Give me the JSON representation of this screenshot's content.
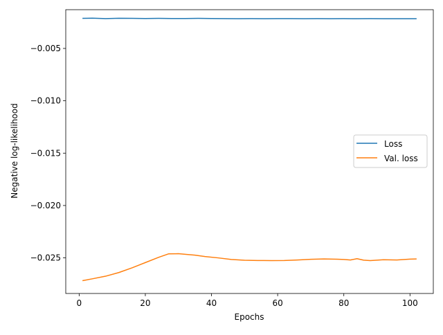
{
  "chart_data": {
    "type": "line",
    "title": "",
    "xlabel": "Epochs",
    "ylabel": "Negative log-likelihood",
    "xlim": [
      -4.05,
      107.05
    ],
    "ylim": [
      -0.0284,
      -0.0013
    ],
    "xticks": [
      0,
      20,
      40,
      60,
      80,
      100
    ],
    "xtick_labels": [
      "0",
      "20",
      "40",
      "60",
      "80",
      "100"
    ],
    "yticks": [
      -0.005,
      -0.01,
      -0.015,
      -0.02,
      -0.025
    ],
    "ytick_labels": [
      "−0.005",
      "−0.010",
      "−0.015",
      "−0.020",
      "−0.025"
    ],
    "grid": false,
    "legend_position": "center-right",
    "series": [
      {
        "name": "Loss",
        "color": "#1f77b4",
        "x": [
          1,
          4,
          8,
          12,
          16,
          20,
          24,
          28,
          32,
          36,
          40,
          44,
          48,
          52,
          56,
          60,
          64,
          68,
          72,
          76,
          80,
          84,
          88,
          92,
          96,
          100,
          102
        ],
        "y": [
          -0.00213,
          -0.00211,
          -0.00215,
          -0.00212,
          -0.00213,
          -0.00214,
          -0.00213,
          -0.00214,
          -0.00214,
          -0.00213,
          -0.00214,
          -0.00215,
          -0.00216,
          -0.00215,
          -0.00216,
          -0.00215,
          -0.00215,
          -0.00216,
          -0.00215,
          -0.00216,
          -0.00215,
          -0.00216,
          -0.00215,
          -0.00216,
          -0.00216,
          -0.00216,
          -0.00216
        ]
      },
      {
        "name": "Val. loss",
        "color": "#ff7f0e",
        "x": [
          1,
          4,
          8,
          12,
          16,
          20,
          24,
          27,
          30,
          32,
          35,
          38,
          42,
          46,
          50,
          54,
          58,
          62,
          66,
          70,
          74,
          78,
          80,
          82,
          84,
          86,
          88,
          92,
          96,
          100,
          102
        ],
        "y": [
          -0.02718,
          -0.027,
          -0.02675,
          -0.0264,
          -0.02595,
          -0.02545,
          -0.02495,
          -0.02462,
          -0.0246,
          -0.02466,
          -0.02474,
          -0.02487,
          -0.025,
          -0.02515,
          -0.02523,
          -0.02525,
          -0.02526,
          -0.02525,
          -0.0252,
          -0.02514,
          -0.0251,
          -0.02513,
          -0.02515,
          -0.0252,
          -0.02508,
          -0.02522,
          -0.02526,
          -0.02518,
          -0.0252,
          -0.02512,
          -0.0251
        ]
      }
    ]
  }
}
